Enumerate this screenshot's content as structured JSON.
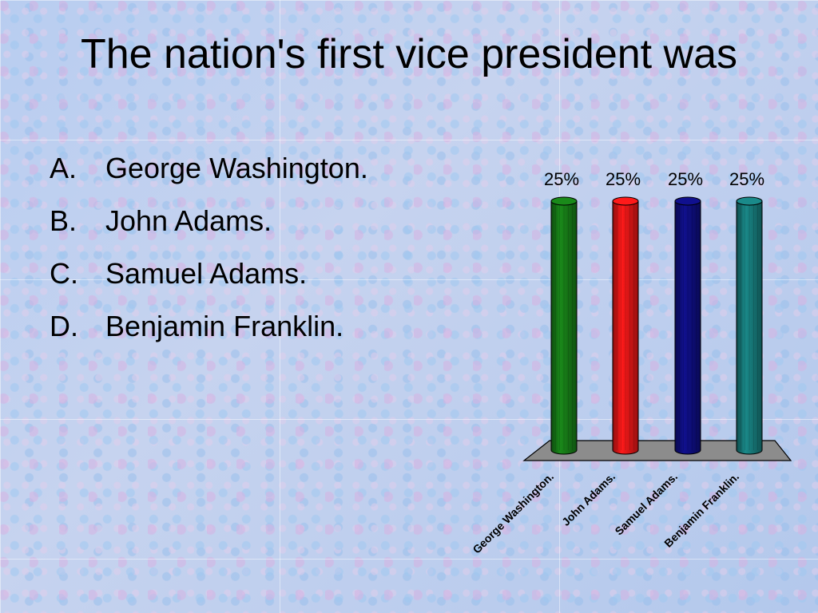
{
  "slide": {
    "title": "The nation's first vice president was"
  },
  "answers": [
    {
      "letter": "A.",
      "text": "George Washington."
    },
    {
      "letter": "B.",
      "text": "John Adams."
    },
    {
      "letter": "C.",
      "text": "Samuel Adams."
    },
    {
      "letter": "D.",
      "text": "Benjamin Franklin."
    }
  ],
  "chart_data": {
    "type": "bar",
    "categories": [
      "George Washington.",
      "John Adams.",
      "Samuel Adams.",
      "Benjamin Franklin."
    ],
    "values": [
      25,
      25,
      25,
      25
    ],
    "data_labels": [
      "25%",
      "25%",
      "25%",
      "25%"
    ],
    "colors": [
      "#1a8a1a",
      "#ff1a1a",
      "#10108f",
      "#1a8a8a"
    ],
    "floor_color": "#8c8c8c",
    "ylim": [
      0,
      25
    ],
    "grid": false,
    "legend": "none"
  }
}
